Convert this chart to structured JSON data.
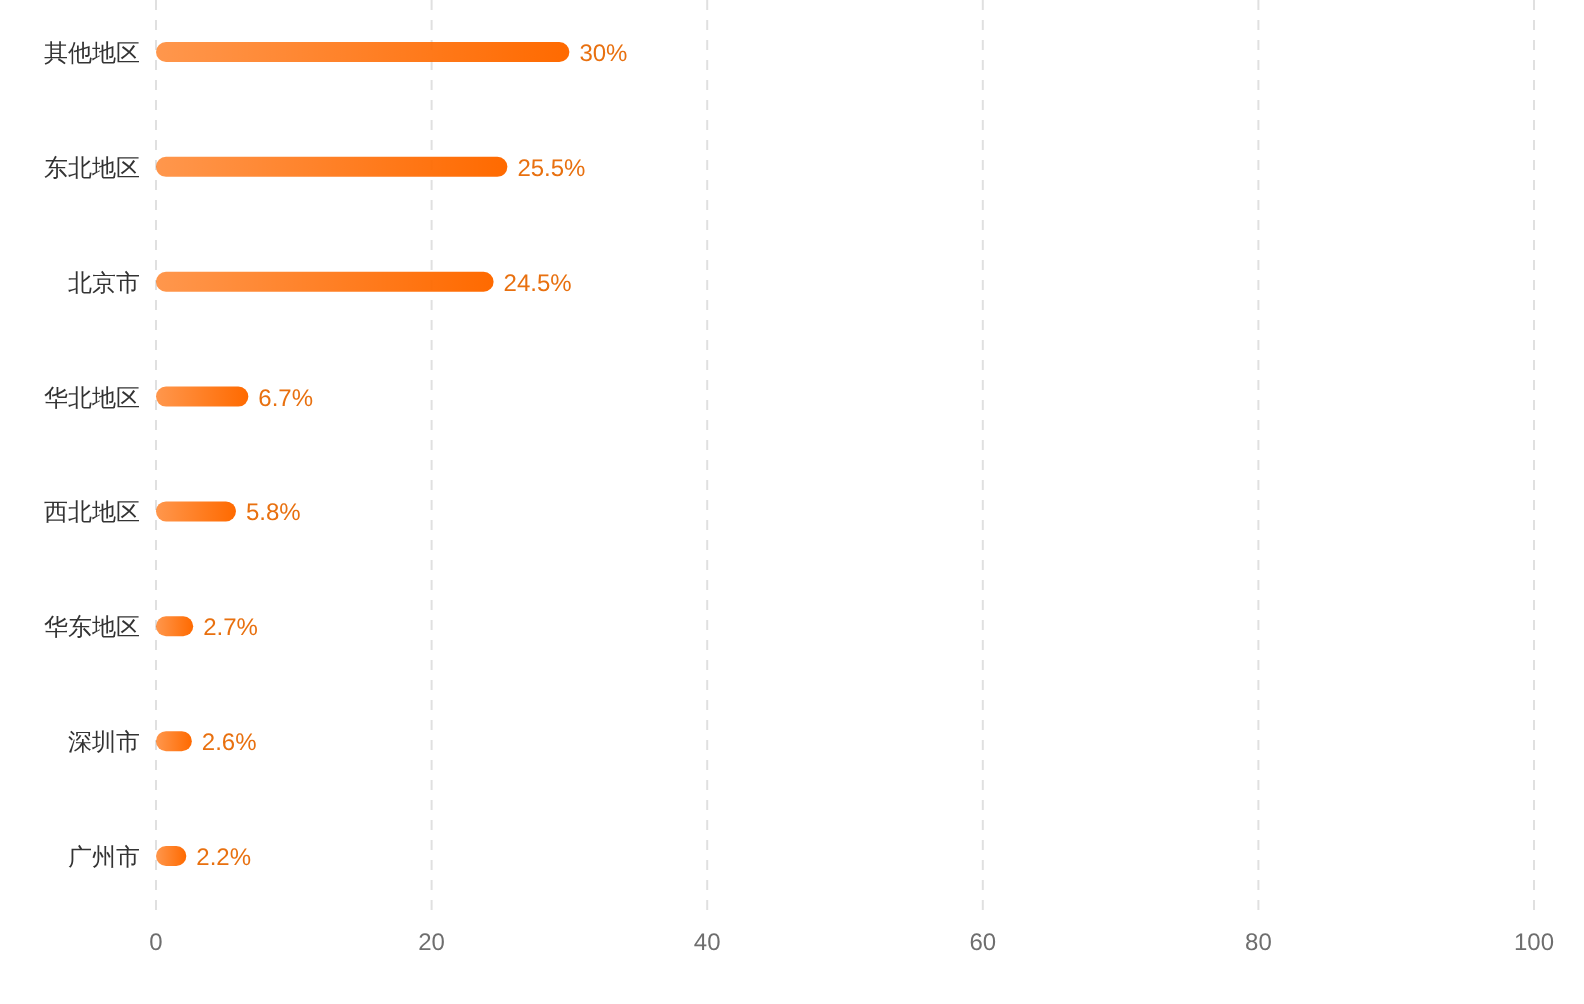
{
  "chart_data": {
    "type": "bar",
    "orientation": "horizontal",
    "categories": [
      "其他地区",
      "东北地区",
      "北京市",
      "华北地区",
      "西北地区",
      "华东地区",
      "深圳市",
      "广州市"
    ],
    "values": [
      30,
      25.5,
      24.5,
      6.7,
      5.8,
      2.7,
      2.6,
      2.2
    ],
    "value_labels": [
      "30%",
      "25.5%",
      "24.5%",
      "6.7%",
      "5.8%",
      "2.7%",
      "2.6%",
      "2.2%"
    ],
    "color": "#ff6a00",
    "xlim": [
      0,
      100
    ],
    "xticks": [
      0,
      20,
      40,
      60,
      80,
      100
    ],
    "grid": "x"
  }
}
